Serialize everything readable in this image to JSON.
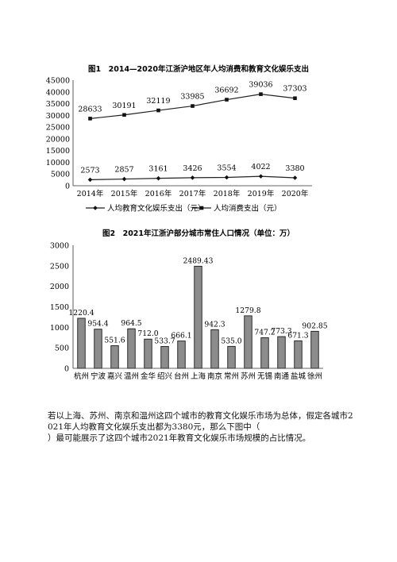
{
  "charts": [
    {
      "title": "图1　2014—2020年江浙沪地区年人均消费和教育文化娱乐支出",
      "type": "line",
      "categories": [
        "2014年",
        "2015年",
        "2016年",
        "2017年",
        "2018年",
        "2019年",
        "2020年"
      ],
      "yticks": [
        "45000",
        "40000",
        "35000",
        "30000",
        "25000",
        "20000",
        "15000",
        "10000",
        "5000",
        "0"
      ],
      "ylim": [
        0,
        45000
      ],
      "series": [
        {
          "name": "人均教育文化娱乐支出（元）",
          "marker": "diamond",
          "values": [
            2573,
            2857,
            3161,
            3426,
            3554,
            4022,
            3380
          ],
          "labels": [
            "2573",
            "2857",
            "3161",
            "3426",
            "3554",
            "4022",
            "3380"
          ]
        },
        {
          "name": "人均消费支出（元）",
          "marker": "square",
          "values": [
            28633,
            30191,
            32119,
            33985,
            36692,
            39036,
            37303
          ],
          "labels": [
            "28633",
            "30191",
            "32119",
            "33985",
            "36692",
            "39036",
            "37303"
          ]
        }
      ],
      "legend": "bottom"
    },
    {
      "title": "图2　2021年江浙沪部分城市常住人口情况（单位：万）",
      "type": "bar",
      "categories": [
        "杭州",
        "宁波",
        "嘉兴",
        "温州",
        "金华",
        "绍兴",
        "台州",
        "上海",
        "南京",
        "常州",
        "苏州",
        "无锡",
        "南通",
        "盐城",
        "徐州"
      ],
      "values": [
        1220.4,
        954.4,
        551.6,
        964.5,
        712.0,
        533.7,
        666.1,
        2489.43,
        942.3,
        535.0,
        1279.8,
        747.2,
        773.3,
        671.3,
        902.85
      ],
      "labels": [
        "1220.4",
        "954.4",
        "551.6",
        "964.5",
        "712.0",
        "533.7",
        "666.1",
        "2489.43",
        "942.3",
        "535.0",
        "1279.8",
        "747.2",
        "773.3",
        "671.3",
        "902.85"
      ],
      "yticks": [
        "3000",
        "2500",
        "2000",
        "1500",
        "1000",
        "500",
        "0"
      ],
      "ylim": [
        0,
        3000
      ]
    }
  ],
  "question": {
    "line1": "若以上海、苏州、南京和温州这四个城市的教育文化娱乐市场为总体，假定各城市2021年人均教育文化娱乐支出都为3380元，那么下图中（",
    "line2": "）最可能展示了这四个城市2021年教育文化娱乐市场规模的占比情况。"
  }
}
